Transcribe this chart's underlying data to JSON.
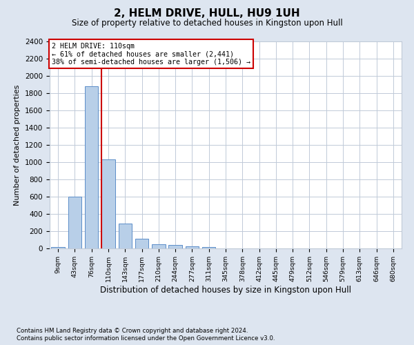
{
  "title": "2, HELM DRIVE, HULL, HU9 1UH",
  "subtitle": "Size of property relative to detached houses in Kingston upon Hull",
  "xlabel": "Distribution of detached houses by size in Kingston upon Hull",
  "ylabel": "Number of detached properties",
  "footnote1": "Contains HM Land Registry data © Crown copyright and database right 2024.",
  "footnote2": "Contains public sector information licensed under the Open Government Licence v3.0.",
  "bar_labels": [
    "9sqm",
    "43sqm",
    "76sqm",
    "110sqm",
    "143sqm",
    "177sqm",
    "210sqm",
    "244sqm",
    "277sqm",
    "311sqm",
    "345sqm",
    "378sqm",
    "412sqm",
    "445sqm",
    "479sqm",
    "512sqm",
    "546sqm",
    "579sqm",
    "613sqm",
    "646sqm",
    "680sqm"
  ],
  "bar_values": [
    20,
    600,
    1880,
    1030,
    290,
    115,
    50,
    40,
    28,
    18,
    0,
    0,
    0,
    0,
    0,
    0,
    0,
    0,
    0,
    0,
    0
  ],
  "bar_color": "#b8cfe8",
  "bar_edge_color": "#5b8dc8",
  "vline_color": "#cc0000",
  "property_bin_index": 3,
  "annotation_title": "2 HELM DRIVE: 110sqm",
  "annotation_line1": "← 61% of detached houses are smaller (2,441)",
  "annotation_line2": "38% of semi-detached houses are larger (1,506) →",
  "ylim_max": 2400,
  "ytick_step": 200,
  "figsize": [
    6.0,
    5.0
  ],
  "dpi": 100,
  "fig_bg_color": "#dde5f0",
  "plot_bg_color": "#ffffff",
  "grid_color": "#c0cad8"
}
